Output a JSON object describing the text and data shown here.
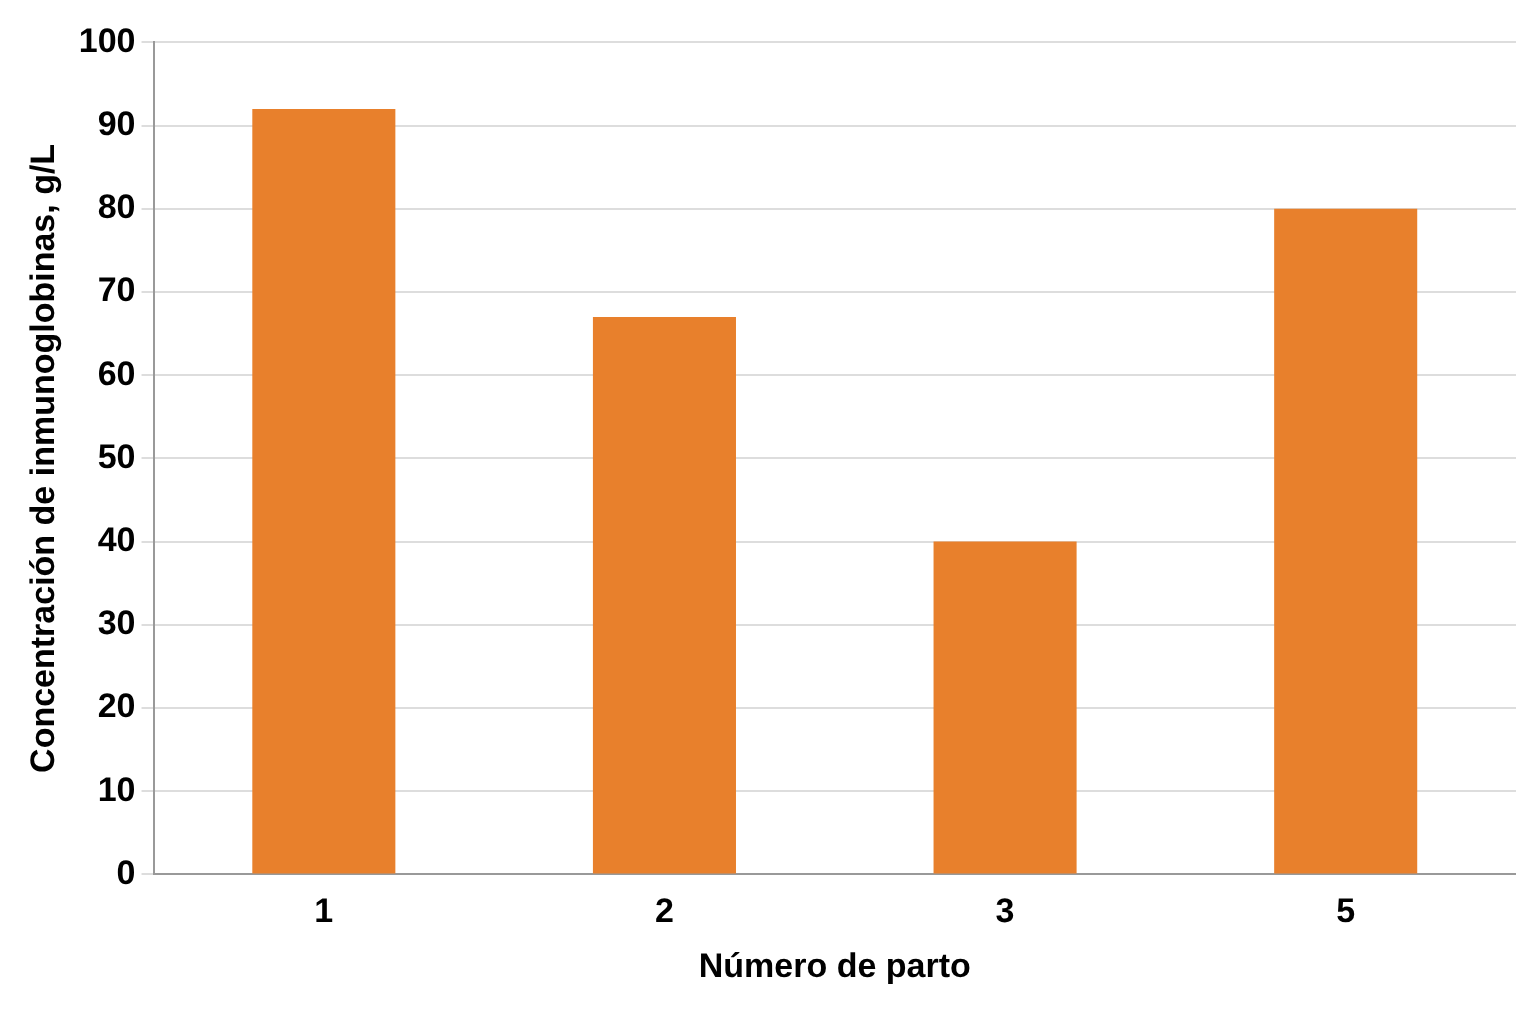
{
  "chart_data": {
    "type": "bar",
    "xlabel": "Número de parto",
    "ylabel": "Concentración de inmunoglobinas, g/L",
    "categories": [
      "1",
      "2",
      "3",
      "5"
    ],
    "values": [
      92,
      67,
      40,
      80
    ],
    "color": "#e8802c",
    "ylim": [
      0,
      100
    ],
    "yticks": [
      0,
      10,
      20,
      30,
      40,
      50,
      60,
      70,
      80,
      90,
      100
    ],
    "grid": "y"
  }
}
